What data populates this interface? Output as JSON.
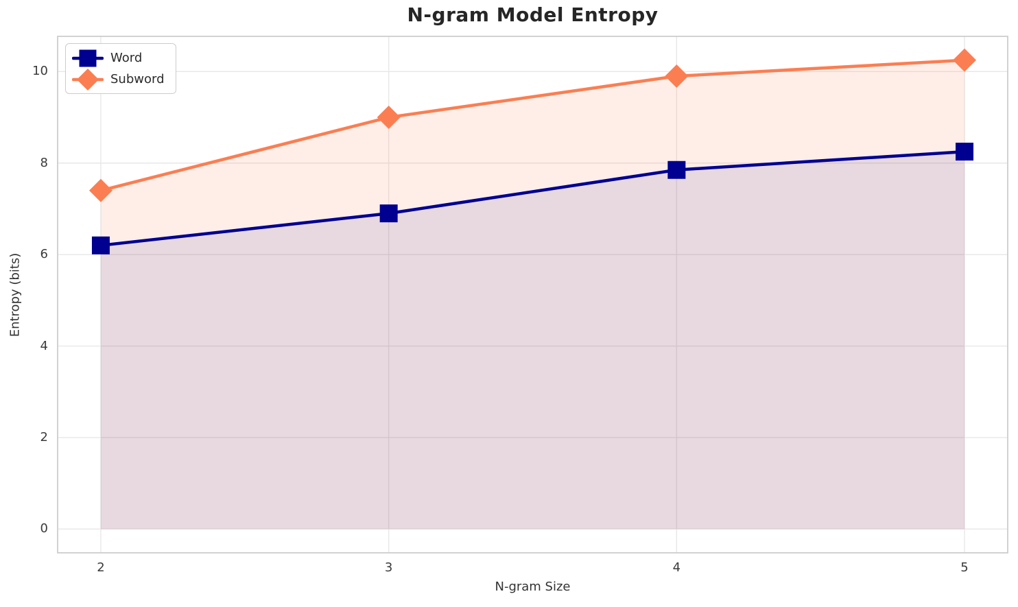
{
  "figure": {
    "background": "#ffffff"
  },
  "chart_data": {
    "type": "line",
    "title": "N-gram Model Entropy",
    "xlabel": "N-gram Size",
    "ylabel": "Entropy (bits)",
    "x": [
      2,
      3,
      4,
      5
    ],
    "series": [
      {
        "name": "Word",
        "values": [
          6.2,
          6.9,
          7.85,
          8.25
        ],
        "color": "#000090",
        "fill": "rgba(0,0,139,0.09)",
        "marker": "square"
      },
      {
        "name": "Subword",
        "values": [
          7.4,
          9.0,
          9.9,
          10.25
        ],
        "color": "#fb7e52",
        "fill": "rgba(255,127,80,0.13)",
        "marker": "diamond"
      }
    ],
    "area_baseline": 0,
    "xticks": {
      "values": [
        2,
        3,
        4,
        5
      ],
      "labels": [
        "2",
        "3",
        "4",
        "5"
      ]
    },
    "yticks": {
      "values": [
        0,
        2,
        4,
        6,
        8,
        10
      ],
      "labels": [
        "0",
        "2",
        "4",
        "6",
        "8",
        "10"
      ]
    },
    "xlim": [
      1.85,
      5.15
    ],
    "ylim": [
      -0.52,
      10.77
    ],
    "grid": true,
    "legend_position": "upper left",
    "grid_color": "#e7e7e7",
    "spine_color": "#cdcdcd"
  }
}
